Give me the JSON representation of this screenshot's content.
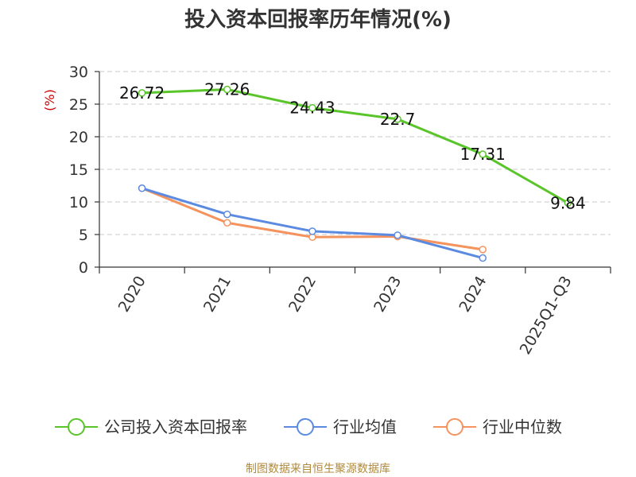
{
  "chart_data": {
    "type": "line",
    "title": "投入资本回报率历年情况(%)",
    "ylabel": "(%)",
    "xlabel": "",
    "ylim": [
      0,
      30
    ],
    "yticks": [
      0,
      5,
      10,
      15,
      20,
      25,
      30
    ],
    "grid": true,
    "legend_position": "bottom",
    "categories": [
      "2020",
      "2021",
      "2022",
      "2023",
      "2024",
      "2025Q1-Q3"
    ],
    "series": [
      {
        "name": "公司投入资本回报率",
        "color": "#5ac52b",
        "values": [
          26.72,
          27.26,
          24.43,
          22.7,
          17.31,
          9.84
        ],
        "labels": [
          "26.72",
          "27.26",
          "24.43",
          "22.7",
          "17.31",
          "9.84"
        ]
      },
      {
        "name": "行业均值",
        "color": "#5b8be0",
        "values": [
          12.1,
          8.1,
          5.5,
          4.9,
          1.4,
          null
        ]
      },
      {
        "name": "行业中位数",
        "color": "#f4935e",
        "values": [
          12.1,
          6.8,
          4.6,
          4.7,
          2.7,
          null
        ]
      }
    ]
  },
  "source": "制图数据来自恒生聚源数据库"
}
